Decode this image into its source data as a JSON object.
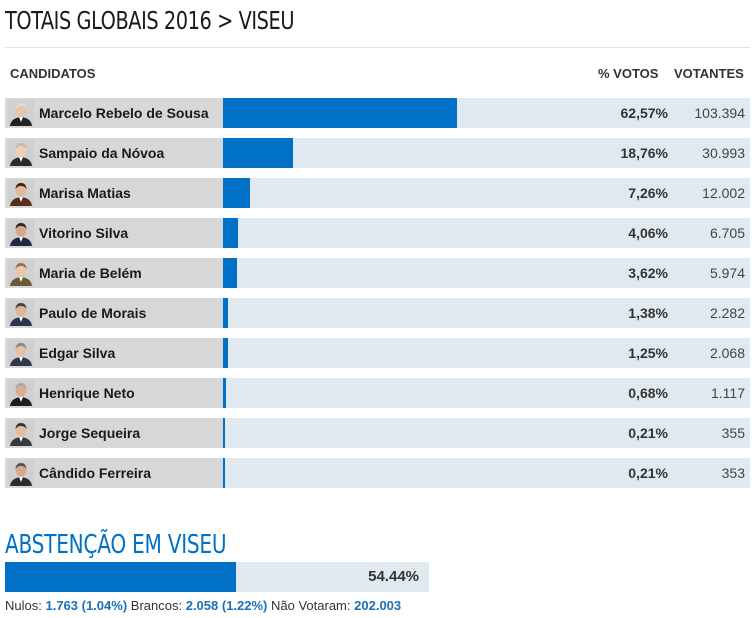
{
  "title": "TOTAIS GLOBAIS 2016 > VISEU",
  "headers": {
    "candidates": "CANDIDATOS",
    "percent": "% VOTOS",
    "voters": "VOTANTES"
  },
  "colors": {
    "bar": "#0071c7",
    "track": "#e1e9f0",
    "name_cell": "#d7d7d7",
    "accent_text": "#1a70b8"
  },
  "chart_data": {
    "type": "bar",
    "orientation": "horizontal",
    "categories": [
      "Marcelo Rebelo de Sousa",
      "Sampaio da Nóvoa",
      "Marisa Matias",
      "Vitorino Silva",
      "Maria de Belém",
      "Paulo de Morais",
      "Edgar Silva",
      "Henrique Neto",
      "Jorge Sequeira",
      "Cândido Ferreira"
    ],
    "values": [
      62.57,
      18.76,
      7.26,
      4.06,
      3.62,
      1.38,
      1.25,
      0.68,
      0.21,
      0.21
    ],
    "xlim": [
      0,
      100
    ],
    "rows": [
      {
        "name": "Marcelo Rebelo de Sousa",
        "value": 62.57,
        "pct": "62,57%",
        "votes": "103.394"
      },
      {
        "name": "Sampaio da Nóvoa",
        "value": 18.76,
        "pct": "18,76%",
        "votes": "30.993"
      },
      {
        "name": "Marisa Matias",
        "value": 7.26,
        "pct": "7,26%",
        "votes": "12.002"
      },
      {
        "name": "Vitorino Silva",
        "value": 4.06,
        "pct": "4,06%",
        "votes": "6.705"
      },
      {
        "name": "Maria de Belém",
        "value": 3.62,
        "pct": "3,62%",
        "votes": "5.974"
      },
      {
        "name": "Paulo de Morais",
        "value": 1.38,
        "pct": "1,38%",
        "votes": "2.282"
      },
      {
        "name": "Edgar Silva",
        "value": 1.25,
        "pct": "1,25%",
        "votes": "2.068"
      },
      {
        "name": "Henrique Neto",
        "value": 0.68,
        "pct": "0,68%",
        "votes": "1.117"
      },
      {
        "name": "Jorge Sequeira",
        "value": 0.21,
        "pct": "0,21%",
        "votes": "355"
      },
      {
        "name": "Cândido Ferreira",
        "value": 0.21,
        "pct": "0,21%",
        "votes": "353"
      }
    ]
  },
  "abstention": {
    "title": "ABSTENÇÃO EM VISEU",
    "value": 54.44,
    "label": "54.44%"
  },
  "footer": {
    "nulos_label": "Nulos:",
    "nulos_value": "1.763 (1.04%)",
    "brancos_label": "Brancos:",
    "brancos_value": "2.058 (1.22%)",
    "nao_votaram_label": "Não Votaram:",
    "nao_votaram_value": "202.003"
  }
}
